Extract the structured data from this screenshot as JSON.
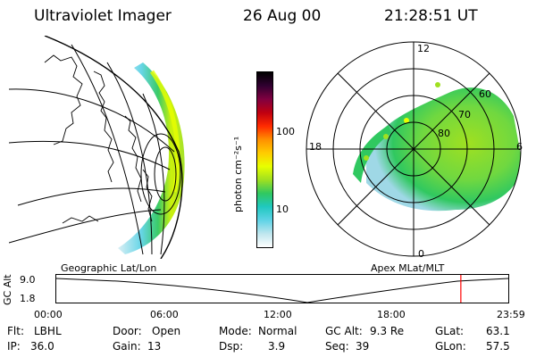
{
  "header": {
    "title": "Ultraviolet Imager",
    "date": "26 Aug 00",
    "time": "21:28:51 UT"
  },
  "colorbar": {
    "unit_label": "photon cm⁻²s⁻¹",
    "ticks": [
      "100",
      "10"
    ],
    "colors": [
      "#ffffff",
      "#bfe6ee",
      "#5fd3e6",
      "#20c8c0",
      "#30c860",
      "#a0e020",
      "#e8ff00",
      "#ffcc00",
      "#ff9000",
      "#ff2a00",
      "#c00010",
      "#800040",
      "#300030",
      "#000000"
    ]
  },
  "polar": {
    "mlt_labels": {
      "top": "12",
      "left": "18",
      "right": "6",
      "bottom": "0"
    },
    "lat_labels": [
      "60",
      "70",
      "80"
    ]
  },
  "panels": {
    "left_label": "Geographic Lat/Lon",
    "right_label": "Apex MLat/MLT"
  },
  "altitude_plot": {
    "ylabel": "GC Alt",
    "yticks": [
      "9.0",
      "1.8"
    ],
    "xticks": [
      "00:00",
      "06:00",
      "12:00",
      "18:00",
      "23:59"
    ],
    "current_marker_hours": 21.48
  },
  "info": {
    "flt_label": "Flt:",
    "flt": "LBHL",
    "ip_label": "IP:",
    "ip": "36.0",
    "door_label": "Door:",
    "door": "Open",
    "gain_label": "Gain:",
    "gain": "13",
    "mode_label": "Mode:",
    "mode": "Normal",
    "dsp_label": "Dsp:",
    "dsp": "3.9",
    "gcalt_label": "GC Alt:",
    "gcalt": "9.3 Re",
    "seq_label": "Seq:",
    "seq": "39",
    "glat_label": "GLat:",
    "glat": "63.1",
    "glon_label": "GLon:",
    "glon": "57.5"
  }
}
